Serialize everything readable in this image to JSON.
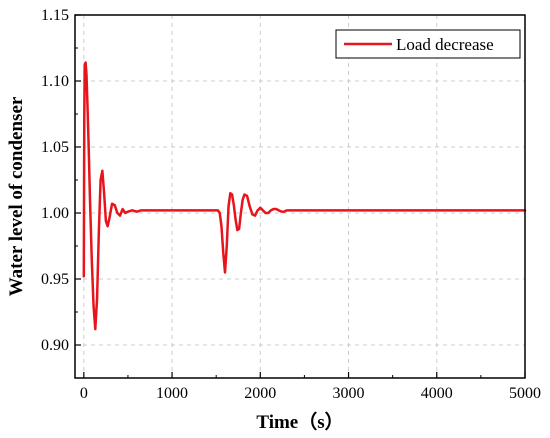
{
  "chart_data": {
    "type": "line",
    "title": "",
    "xlabel": "Time（s）",
    "ylabel": "Water level of condenser",
    "xlim": [
      -100,
      5000
    ],
    "ylim": [
      0.875,
      1.15
    ],
    "xticks": [
      0,
      1000,
      2000,
      3000,
      4000,
      5000
    ],
    "yticks": [
      0.9,
      0.95,
      1.0,
      1.05,
      1.1,
      1.15
    ],
    "xtick_labels": [
      "0",
      "1000",
      "2000",
      "3000",
      "4000",
      "5000"
    ],
    "ytick_labels": [
      "0.90",
      "0.95",
      "1.00",
      "1.05",
      "1.10",
      "1.15"
    ],
    "grid": true,
    "legend_position": "top-right",
    "colors": {
      "series": "#e8141c",
      "grid": "#cccccc",
      "axis": "#000000"
    },
    "series": [
      {
        "name": "Load decrease",
        "x": [
          0,
          5,
          10,
          20,
          30,
          40,
          55,
          70,
          90,
          110,
          130,
          150,
          170,
          190,
          210,
          230,
          250,
          270,
          290,
          320,
          350,
          380,
          410,
          440,
          470,
          500,
          550,
          600,
          650,
          700,
          800,
          900,
          1000,
          1100,
          1200,
          1300,
          1400,
          1500,
          1520,
          1540,
          1560,
          1580,
          1600,
          1620,
          1640,
          1660,
          1680,
          1700,
          1720,
          1740,
          1760,
          1780,
          1800,
          1820,
          1850,
          1880,
          1910,
          1940,
          1970,
          2000,
          2030,
          2060,
          2090,
          2120,
          2150,
          2180,
          2210,
          2240,
          2270,
          2300,
          2350,
          2400,
          2500,
          2600,
          3000,
          4000,
          5000
        ],
        "y": [
          0.952,
          1.07,
          1.112,
          1.114,
          1.105,
          1.085,
          1.05,
          1.01,
          0.965,
          0.93,
          0.912,
          0.935,
          0.985,
          1.025,
          1.032,
          1.015,
          0.994,
          0.99,
          0.996,
          1.007,
          1.006,
          1.0,
          0.998,
          1.003,
          1.0,
          1.001,
          1.002,
          1.001,
          1.002,
          1.002,
          1.002,
          1.002,
          1.002,
          1.002,
          1.002,
          1.002,
          1.002,
          1.002,
          1.002,
          1.0,
          0.99,
          0.97,
          0.955,
          0.975,
          1.005,
          1.015,
          1.014,
          1.006,
          0.995,
          0.987,
          0.988,
          1.0,
          1.01,
          1.014,
          1.013,
          1.005,
          0.999,
          0.998,
          1.002,
          1.004,
          1.002,
          1.0,
          1.0,
          1.002,
          1.003,
          1.003,
          1.002,
          1.001,
          1.001,
          1.002,
          1.002,
          1.002,
          1.002,
          1.002,
          1.002,
          1.002,
          1.002
        ]
      }
    ]
  }
}
